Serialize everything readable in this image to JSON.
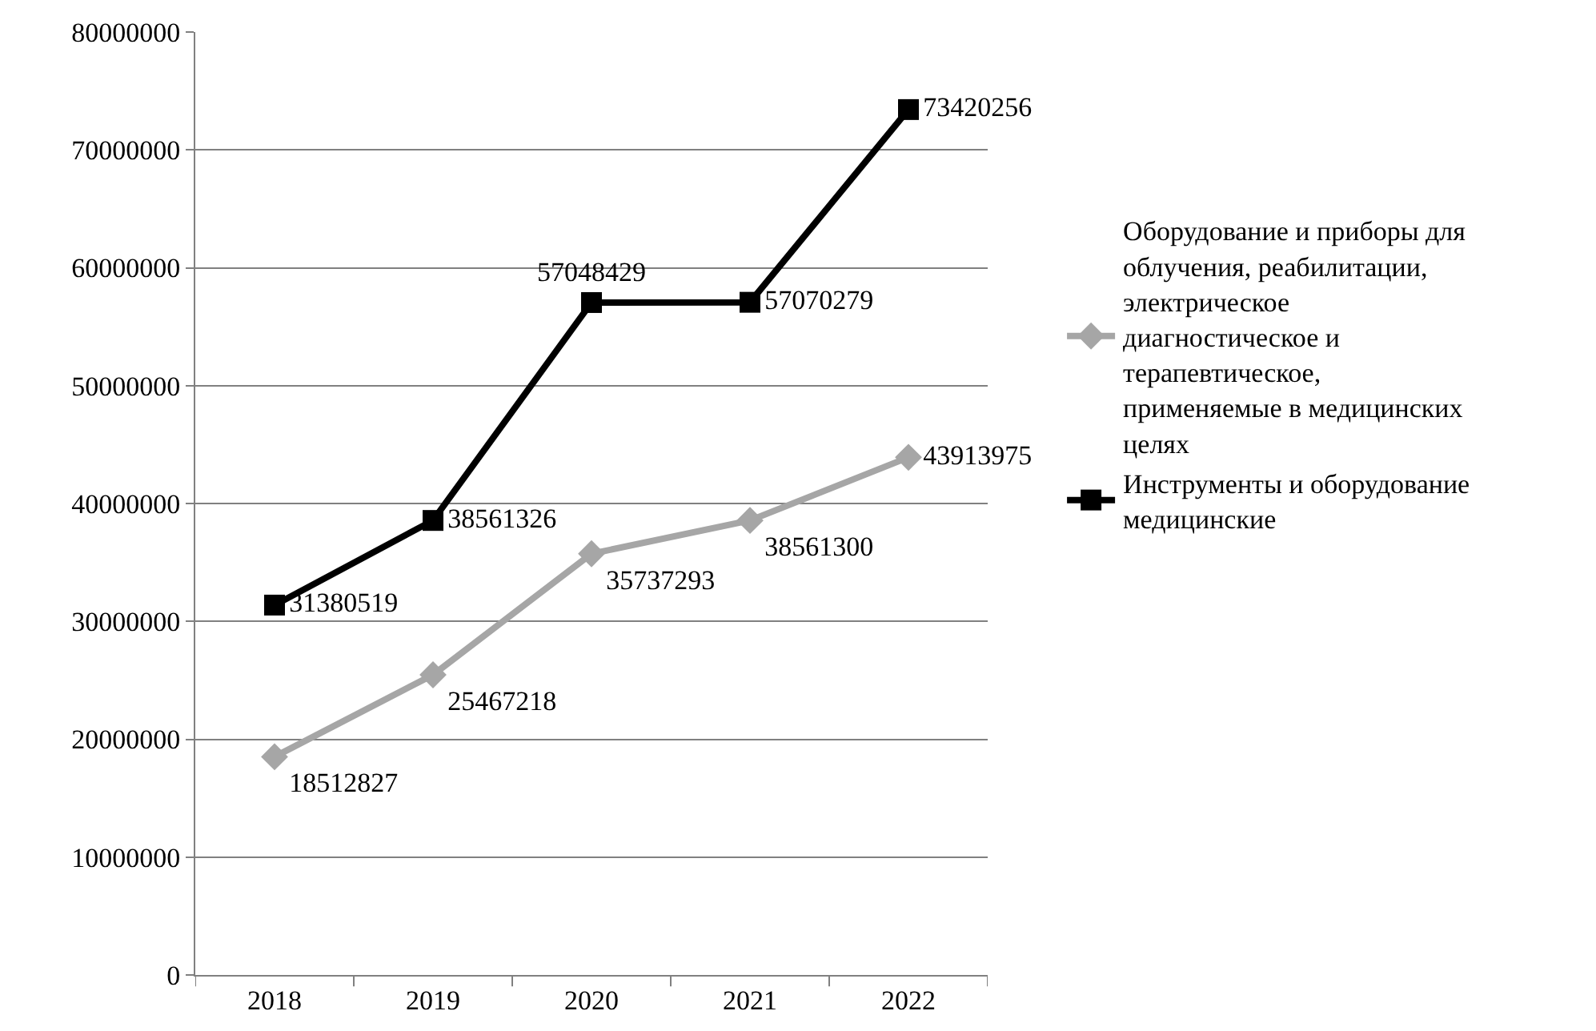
{
  "chart_data": {
    "type": "line",
    "categories": [
      "2018",
      "2019",
      "2020",
      "2021",
      "2022"
    ],
    "series": [
      {
        "name": "Оборудование и приборы для облучения, реабилитации, электрическое диагностическое и терапевтическое, применяемые в медицинских целях",
        "color": "#a6a6a6",
        "marker": "diamond",
        "values": [
          18512827,
          25467218,
          35737293,
          38561300,
          43913975
        ]
      },
      {
        "name": "Инструменты и оборудование медицинские",
        "color": "#000000",
        "marker": "square",
        "values": [
          31380519,
          38561326,
          57048429,
          57070279,
          73420256
        ]
      }
    ],
    "ylim": [
      0,
      80000000
    ],
    "yticks": [
      0,
      10000000,
      20000000,
      30000000,
      40000000,
      50000000,
      60000000,
      70000000,
      80000000
    ],
    "grid": "y",
    "legend": "right",
    "data_labels": true,
    "line_style": "solid"
  }
}
